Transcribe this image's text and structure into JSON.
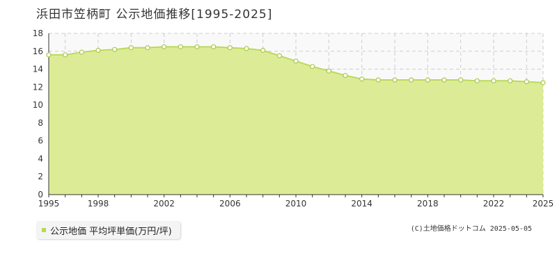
{
  "title": "浜田市笠柄町 公示地価推移[1995-2025]",
  "legend_label": "公示地価 平均坪単価(万円/坪)",
  "credit": "(C)土地価格ドットコム 2025-05-05",
  "colors": {
    "area_fill": "#dcec96",
    "line": "#bcd95a",
    "point_fill": "#ffffff",
    "point_stroke": "#a8c84a",
    "grid": "#cccccc",
    "plot_bg": "#f9f9f9"
  },
  "chart_data": {
    "type": "area",
    "title": "浜田市笠柄町 公示地価推移[1995-2025]",
    "xlabel": "",
    "ylabel": "",
    "xlim": [
      1995,
      2025
    ],
    "ylim": [
      0,
      18
    ],
    "x_ticks": [
      1995,
      1998,
      2002,
      2006,
      2010,
      2014,
      2018,
      2022,
      2025
    ],
    "y_ticks": [
      0,
      2,
      4,
      6,
      8,
      10,
      12,
      14,
      16,
      18
    ],
    "grid": true,
    "legend_position": "bottom-left",
    "series": [
      {
        "name": "公示地価 平均坪単価(万円/坪)",
        "x": [
          1995,
          1996,
          1997,
          1998,
          1999,
          2000,
          2001,
          2002,
          2003,
          2004,
          2005,
          2006,
          2007,
          2008,
          2009,
          2010,
          2011,
          2012,
          2013,
          2014,
          2015,
          2016,
          2017,
          2018,
          2019,
          2020,
          2021,
          2022,
          2023,
          2024,
          2025
        ],
        "values": [
          15.6,
          15.6,
          15.9,
          16.1,
          16.2,
          16.4,
          16.4,
          16.5,
          16.5,
          16.5,
          16.5,
          16.4,
          16.3,
          16.1,
          15.5,
          14.9,
          14.3,
          13.8,
          13.3,
          12.9,
          12.8,
          12.8,
          12.8,
          12.8,
          12.8,
          12.8,
          12.7,
          12.7,
          12.7,
          12.6,
          12.5
        ]
      }
    ]
  }
}
